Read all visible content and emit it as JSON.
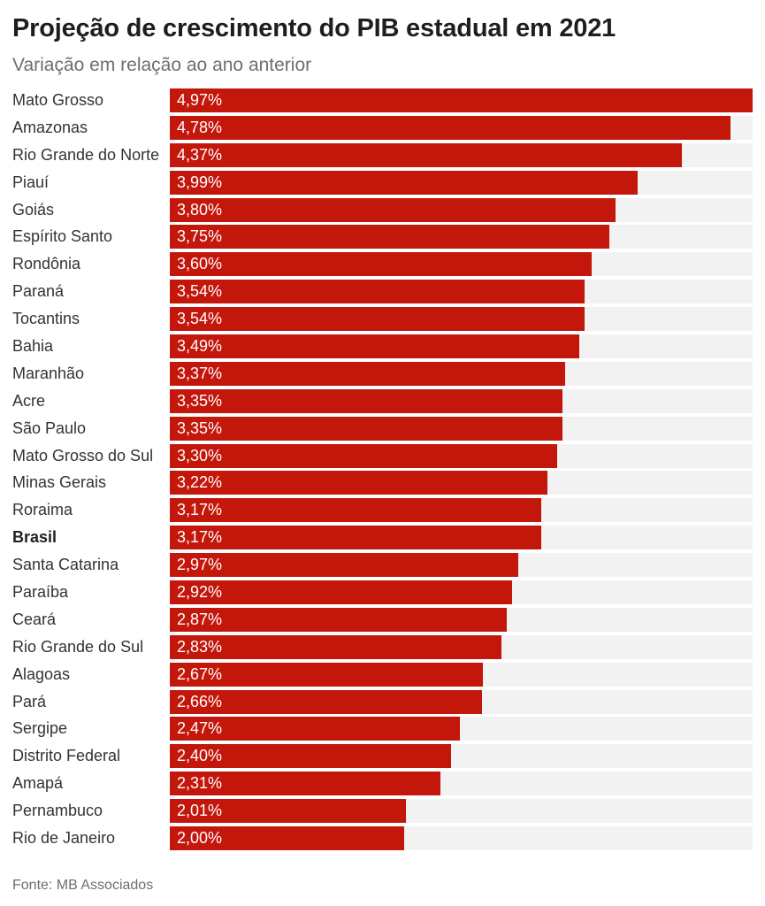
{
  "header": {
    "title": "Projeção de crescimento do PIB estadual em 2021",
    "subtitle": "Variação em relação ao ano anterior"
  },
  "footer": {
    "source": "Fonte: MB Associados"
  },
  "colors": {
    "bar": "#c4170c",
    "track": "#f2f2f2",
    "title": "#1e1e1e",
    "subtitle": "#6e6e6e",
    "label": "#333333",
    "value_text": "#ffffff",
    "background": "#ffffff"
  },
  "chart_data": {
    "type": "bar",
    "orientation": "horizontal",
    "title": "Projeção de crescimento do PIB estadual em 2021",
    "subtitle": "Variação em relação ao ano anterior",
    "source": "Fonte: MB Associados",
    "xlim": [
      0,
      4.97
    ],
    "grid": false,
    "legend": false,
    "emphasized_category": "Brasil",
    "categories": [
      "Mato Grosso",
      "Amazonas",
      "Rio Grande do Norte",
      "Piauí",
      "Goiás",
      "Espírito Santo",
      "Rondônia",
      "Paraná",
      "Tocantins",
      "Bahia",
      "Maranhão",
      "Acre",
      "São Paulo",
      "Mato Grosso do Sul",
      "Minas Gerais",
      "Roraima",
      "Brasil",
      "Santa Catarina",
      "Paraíba",
      "Ceará",
      "Rio Grande do Sul",
      "Alagoas",
      "Pará",
      "Sergipe",
      "Distrito Federal",
      "Amapá",
      "Pernambuco",
      "Rio de Janeiro"
    ],
    "values": [
      4.97,
      4.78,
      4.37,
      3.99,
      3.8,
      3.75,
      3.6,
      3.54,
      3.54,
      3.49,
      3.37,
      3.35,
      3.35,
      3.3,
      3.22,
      3.17,
      3.17,
      2.97,
      2.92,
      2.87,
      2.83,
      2.67,
      2.66,
      2.47,
      2.4,
      2.31,
      2.01,
      2.0
    ],
    "value_labels": [
      "4,97%",
      "4,78%",
      "4,37%",
      "3,99%",
      "3,80%",
      "3,75%",
      "3,60%",
      "3,54%",
      "3,54%",
      "3,49%",
      "3,37%",
      "3,35%",
      "3,35%",
      "3,30%",
      "3,22%",
      "3,17%",
      "3,17%",
      "2,97%",
      "2,92%",
      "2,87%",
      "2,83%",
      "2,67%",
      "2,66%",
      "2,47%",
      "2,40%",
      "2,31%",
      "2,01%",
      "2,00%"
    ]
  }
}
